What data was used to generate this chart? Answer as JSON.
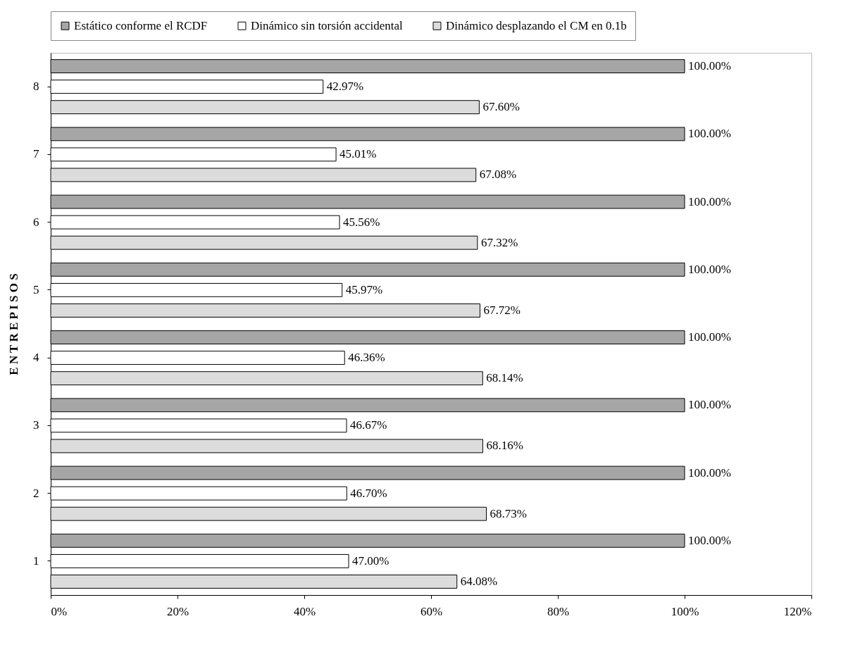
{
  "chart_data": {
    "type": "bar",
    "orientation": "horizontal",
    "ylabel": "E N T R E P I S O S",
    "categories": [
      "8",
      "7",
      "6",
      "5",
      "4",
      "3",
      "2",
      "1"
    ],
    "series": [
      {
        "name": "Estático conforme el RCDF",
        "color": "#a6a6a6",
        "values": [
          100,
          100,
          100,
          100,
          100,
          100,
          100,
          100
        ],
        "value_labels": [
          "100.00%",
          "100.00%",
          "100.00%",
          "100.00%",
          "100.00%",
          "100.00%",
          "100.00%",
          "100.00%"
        ]
      },
      {
        "name": "Dinámico sin torsión accidental",
        "color": "#ffffff",
        "values": [
          42.97,
          45.01,
          45.56,
          45.97,
          46.36,
          46.67,
          46.7,
          47.0
        ],
        "value_labels": [
          "42.97%",
          "45.01%",
          "45.56%",
          "45.97%",
          "46.36%",
          "46.67%",
          "46.70%",
          "47.00%"
        ]
      },
      {
        "name": "Dinámico desplazando el CM en 0.1b",
        "color": "#dcdcdc",
        "values": [
          67.6,
          67.08,
          67.32,
          67.72,
          68.14,
          68.16,
          68.73,
          64.08
        ],
        "value_labels": [
          "67.60%",
          "67.08%",
          "67.32%",
          "67.72%",
          "68.14%",
          "68.16%",
          "68.73%",
          "64.08%"
        ]
      }
    ],
    "xlim": [
      0,
      120
    ],
    "xticks": [
      {
        "value": 0,
        "label": "0%"
      },
      {
        "value": 20,
        "label": "20%"
      },
      {
        "value": 40,
        "label": "40%"
      },
      {
        "value": 60,
        "label": "60%"
      },
      {
        "value": 80,
        "label": "80%"
      },
      {
        "value": 100,
        "label": "100%"
      },
      {
        "value": 120,
        "label": "120%"
      }
    ],
    "grid": false,
    "legend": "top"
  }
}
